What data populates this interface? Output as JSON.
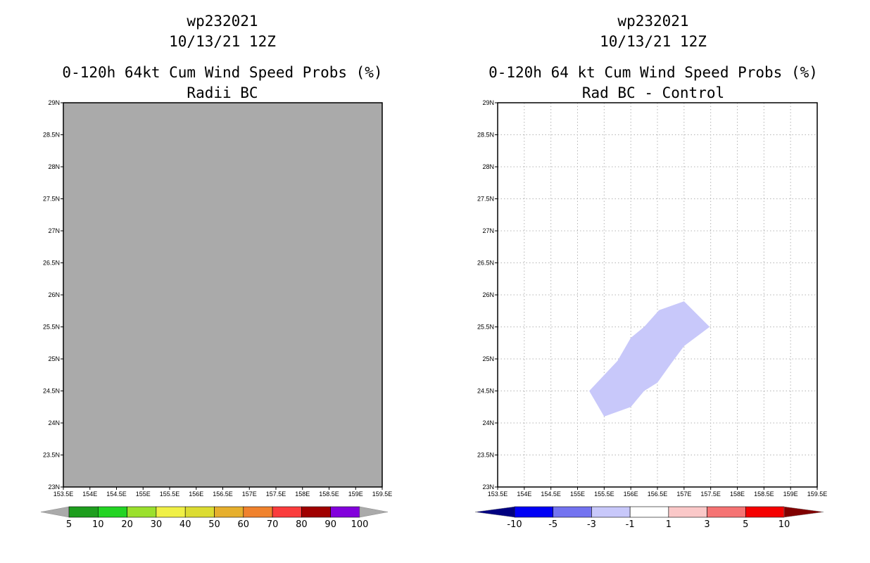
{
  "chart_data": [
    {
      "type": "contour-map",
      "title_lines": [
        "wp232021",
        "10/13/21 12Z",
        "0-120h 64kt Cum Wind Speed Probs (%)",
        "Radii BC"
      ],
      "x_tick_labels": [
        "153.5E",
        "154E",
        "154.5E",
        "155E",
        "155.5E",
        "156E",
        "156.5E",
        "157E",
        "157.5E",
        "158E",
        "158.5E",
        "159E",
        "159.5E"
      ],
      "y_tick_labels": [
        "23N",
        "23.5N",
        "24N",
        "24.5N",
        "25N",
        "25.5N",
        "26N",
        "26.5N",
        "27N",
        "27.5N",
        "28N",
        "28.5N",
        "29N"
      ],
      "xlim": [
        153.5,
        159.5
      ],
      "ylim": [
        23,
        29
      ],
      "grid": false,
      "background": "#aaaaaa",
      "contours": [],
      "colorbar": {
        "labels": [
          "5",
          "10",
          "20",
          "30",
          "40",
          "50",
          "60",
          "70",
          "80",
          "90",
          "100"
        ],
        "colors": [
          "#aaaaaa",
          "#1e9e1e",
          "#23d423",
          "#9be02d",
          "#f0f046",
          "#dcdc32",
          "#e6af2d",
          "#f0822d",
          "#fa3c3c",
          "#a00000",
          "#8200dc",
          "#aaaaaa"
        ]
      }
    },
    {
      "type": "contour-map",
      "title_lines": [
        "wp232021",
        "10/13/21 12Z",
        "0-120h 64 kt Cum Wind Speed Probs (%)",
        "Rad BC - Control"
      ],
      "x_tick_labels": [
        "153.5E",
        "154E",
        "154.5E",
        "155E",
        "155.5E",
        "156E",
        "156.5E",
        "157E",
        "157.5E",
        "158E",
        "158.5E",
        "159E",
        "159.5E"
      ],
      "y_tick_labels": [
        "23N",
        "23.5N",
        "24N",
        "24.5N",
        "25N",
        "25.5N",
        "26N",
        "26.5N",
        "27N",
        "27.5N",
        "28N",
        "28.5N",
        "29N"
      ],
      "xlim": [
        153.5,
        159.5
      ],
      "ylim": [
        23,
        29
      ],
      "grid": true,
      "background": "#ffffff",
      "contours": [
        {
          "level_range": [
            -3,
            -1
          ],
          "color": "#c8c8fa",
          "polygon": [
            [
              155.22,
              24.5
            ],
            [
              155.75,
              24.97
            ],
            [
              156.0,
              25.33
            ],
            [
              156.25,
              25.5
            ],
            [
              156.53,
              25.76
            ],
            [
              157.0,
              25.9
            ],
            [
              157.48,
              25.5
            ],
            [
              157.0,
              25.2
            ],
            [
              156.75,
              24.92
            ],
            [
              156.5,
              24.63
            ],
            [
              156.25,
              24.5
            ],
            [
              156.0,
              24.25
            ],
            [
              155.5,
              24.1
            ]
          ]
        }
      ],
      "colorbar": {
        "labels": [
          "-10",
          "-5",
          "-3",
          "-1",
          "1",
          "3",
          "5",
          "10"
        ],
        "colors": [
          "#000080",
          "#0000f5",
          "#7373f0",
          "#c8c8fa",
          "#ffffff",
          "#fac8c8",
          "#f57373",
          "#f50000",
          "#800000"
        ]
      }
    }
  ]
}
